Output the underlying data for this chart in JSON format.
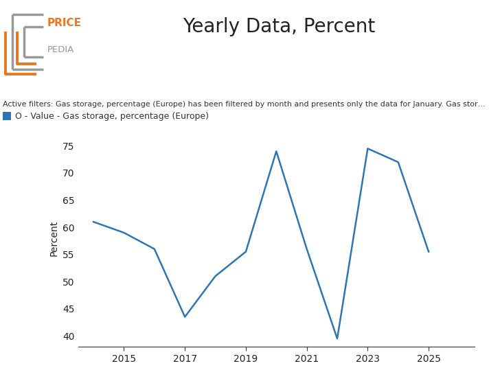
{
  "title": "Yearly Data, Percent",
  "ylabel": "Percent",
  "line_color": "#2e75b6",
  "line_width": 1.8,
  "years": [
    2014,
    2015,
    2016,
    2017,
    2018,
    2019,
    2020,
    2021,
    2022,
    2023,
    2024,
    2025
  ],
  "values": [
    61.0,
    59.0,
    56.0,
    43.5,
    51.0,
    55.5,
    74.0,
    56.0,
    39.5,
    74.5,
    72.0,
    55.5
  ],
  "yticks": [
    40,
    45,
    50,
    55,
    60,
    65,
    70,
    75
  ],
  "xticks": [
    2015,
    2017,
    2019,
    2021,
    2023,
    2025
  ],
  "ylim": [
    38,
    78
  ],
  "xlim": [
    2013.5,
    2026.5
  ],
  "active_filter_text": "Active filters: Gas storage, percentage (Europe) has been filtered by month and presents only the data for January. Gas stor…",
  "legend_text": "O - Value - Gas storage, percentage (Europe)",
  "legend_color": "#2e75b6",
  "background_color": "#ffffff",
  "orange_color": "#E87722",
  "gray_color": "#999999",
  "title_fontsize": 20,
  "filter_fontsize": 8,
  "legend_fontsize": 9
}
